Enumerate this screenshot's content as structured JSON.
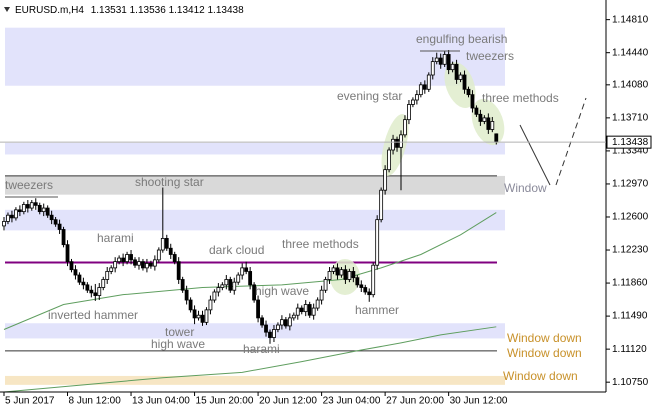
{
  "chart_data": {
    "type": "candlestick",
    "symbol": "EURUSD.m,H4",
    "categories": [
      "5 Jun 2017",
      null,
      null,
      null,
      null,
      null,
      null,
      null,
      null,
      null,
      null,
      null,
      null,
      null,
      null,
      null,
      "8 Jun 12:00",
      null,
      null,
      null,
      null,
      null,
      null,
      null,
      null,
      null,
      null,
      null,
      null,
      null,
      null,
      null,
      "13 Jun 04:00",
      null,
      null,
      null,
      null,
      null,
      null,
      null,
      null,
      null,
      null,
      null,
      null,
      null,
      null,
      null,
      "15 Jun 20:00",
      null,
      null,
      null,
      null,
      null,
      null,
      null,
      null,
      null,
      null,
      null,
      null,
      null,
      null,
      null,
      "20 Jun 12:00",
      null,
      null,
      null,
      null,
      null,
      null,
      null,
      null,
      null,
      null,
      null,
      null,
      null,
      null,
      null,
      "23 Jun 04:00",
      null,
      null,
      null,
      null,
      null,
      null,
      null,
      null,
      null,
      null,
      null,
      null,
      null,
      null,
      null,
      "27 Jun 20:00",
      null,
      null,
      null,
      null,
      null,
      null,
      null,
      null,
      null,
      null,
      null,
      null,
      null,
      null,
      null,
      "30 Jun 12:00",
      null,
      null,
      null,
      null,
      null,
      null,
      null,
      null,
      null,
      null,
      null,
      null
    ],
    "candles": [
      [
        1.125,
        1.126,
        1.1245,
        1.1255
      ],
      [
        1.1255,
        1.1265,
        1.1252,
        1.1262
      ],
      [
        1.1262,
        1.1267,
        1.1254,
        1.1259
      ],
      [
        1.1259,
        1.1271,
        1.1256,
        1.1268
      ],
      [
        1.1268,
        1.1273,
        1.1261,
        1.1266
      ],
      [
        1.1266,
        1.1277,
        1.1263,
        1.1274
      ],
      [
        1.1274,
        1.1279,
        1.1265,
        1.127
      ],
      [
        1.127,
        1.1279,
        1.1267,
        1.1276
      ],
      [
        1.1276,
        1.1281,
        1.1268,
        1.1273
      ],
      [
        1.1273,
        1.1276,
        1.1263,
        1.1266
      ],
      [
        1.1266,
        1.1275,
        1.1261,
        1.127
      ],
      [
        1.127,
        1.1273,
        1.1259,
        1.1262
      ],
      [
        1.1262,
        1.1267,
        1.1252,
        1.1257
      ],
      [
        1.1257,
        1.126,
        1.1249,
        1.1252
      ],
      [
        1.1252,
        1.1257,
        1.1241,
        1.1246
      ],
      [
        1.1246,
        1.1249,
        1.1226,
        1.1229
      ],
      [
        1.1229,
        1.1234,
        1.1205,
        1.121
      ],
      [
        1.121,
        1.1213,
        1.1198,
        1.1201
      ],
      [
        1.1201,
        1.1206,
        1.119,
        1.1195
      ],
      [
        1.1195,
        1.1198,
        1.1184,
        1.1187
      ],
      [
        1.1187,
        1.1192,
        1.1179,
        1.1184
      ],
      [
        1.1184,
        1.1187,
        1.1175,
        1.1178
      ],
      [
        1.1178,
        1.1183,
        1.117,
        1.1175
      ],
      [
        1.1175,
        1.1185,
        1.1166,
        1.1172
      ],
      [
        1.1172,
        1.1186,
        1.1167,
        1.1181
      ],
      [
        1.1181,
        1.1193,
        1.1178,
        1.119
      ],
      [
        1.119,
        1.1204,
        1.1185,
        1.1199
      ],
      [
        1.1199,
        1.1206,
        1.1196,
        1.1203
      ],
      [
        1.1203,
        1.1215,
        1.1198,
        1.121
      ],
      [
        1.121,
        1.1217,
        1.1207,
        1.1214
      ],
      [
        1.1214,
        1.1219,
        1.1205,
        1.121
      ],
      [
        1.121,
        1.1221,
        1.1207,
        1.1218
      ],
      [
        1.1218,
        1.1223,
        1.1207,
        1.1212
      ],
      [
        1.1212,
        1.1215,
        1.1203,
        1.1206
      ],
      [
        1.1206,
        1.1215,
        1.1201,
        1.121
      ],
      [
        1.121,
        1.1213,
        1.12,
        1.1203
      ],
      [
        1.1203,
        1.1213,
        1.1198,
        1.1208
      ],
      [
        1.1208,
        1.1211,
        1.1202,
        1.1205
      ],
      [
        1.1205,
        1.1217,
        1.12,
        1.1212
      ],
      [
        1.1212,
        1.1226,
        1.1209,
        1.1223
      ],
      [
        1.1223,
        1.1293,
        1.122,
        1.1236
      ],
      [
        1.1236,
        1.124,
        1.1222,
        1.1225
      ],
      [
        1.1225,
        1.123,
        1.1213,
        1.1218
      ],
      [
        1.1218,
        1.1221,
        1.1207,
        1.121
      ],
      [
        1.121,
        1.1215,
        1.1185,
        1.119
      ],
      [
        1.119,
        1.1193,
        1.1175,
        1.1178
      ],
      [
        1.1178,
        1.1183,
        1.1162,
        1.1167
      ],
      [
        1.1167,
        1.117,
        1.1153,
        1.1156
      ],
      [
        1.1156,
        1.1161,
        1.114,
        1.1147
      ],
      [
        1.1147,
        1.1155,
        1.1144,
        1.115
      ],
      [
        1.115,
        1.1155,
        1.1138,
        1.1142
      ],
      [
        1.1142,
        1.1159,
        1.1139,
        1.1156
      ],
      [
        1.1156,
        1.1172,
        1.1151,
        1.1167
      ],
      [
        1.1167,
        1.1179,
        1.1164,
        1.1176
      ],
      [
        1.1176,
        1.1186,
        1.1171,
        1.1181
      ],
      [
        1.1181,
        1.1187,
        1.1178,
        1.1184
      ],
      [
        1.1184,
        1.1195,
        1.1179,
        1.119
      ],
      [
        1.119,
        1.1193,
        1.1175,
        1.1178
      ],
      [
        1.1178,
        1.1192,
        1.1173,
        1.1187
      ],
      [
        1.1187,
        1.1198,
        1.1184,
        1.1195
      ],
      [
        1.1195,
        1.1208,
        1.119,
        1.1203
      ],
      [
        1.1203,
        1.121,
        1.1196,
        1.1199
      ],
      [
        1.1199,
        1.1204,
        1.1179,
        1.1184
      ],
      [
        1.1184,
        1.1187,
        1.1164,
        1.1167
      ],
      [
        1.1167,
        1.1172,
        1.1142,
        1.1147
      ],
      [
        1.1147,
        1.115,
        1.1136,
        1.1139
      ],
      [
        1.1139,
        1.1144,
        1.1126,
        1.1131
      ],
      [
        1.1131,
        1.1134,
        1.1118,
        1.1125
      ],
      [
        1.1125,
        1.1139,
        1.112,
        1.1134
      ],
      [
        1.1134,
        1.1142,
        1.1131,
        1.1139
      ],
      [
        1.1139,
        1.115,
        1.1134,
        1.1145
      ],
      [
        1.1145,
        1.1148,
        1.1135,
        1.1138
      ],
      [
        1.1138,
        1.1152,
        1.1133,
        1.1147
      ],
      [
        1.1147,
        1.1153,
        1.1144,
        1.115
      ],
      [
        1.115,
        1.1163,
        1.1145,
        1.1158
      ],
      [
        1.1158,
        1.1161,
        1.1151,
        1.1154
      ],
      [
        1.1154,
        1.1167,
        1.1149,
        1.1162
      ],
      [
        1.1162,
        1.1165,
        1.1147,
        1.115
      ],
      [
        1.115,
        1.1163,
        1.1145,
        1.1158
      ],
      [
        1.1158,
        1.117,
        1.1155,
        1.1167
      ],
      [
        1.1167,
        1.1183,
        1.1162,
        1.1178
      ],
      [
        1.1178,
        1.1193,
        1.1175,
        1.119
      ],
      [
        1.119,
        1.1204,
        1.1185,
        1.1199
      ],
      [
        1.1199,
        1.1206,
        1.1196,
        1.1203
      ],
      [
        1.1203,
        1.1208,
        1.119,
        1.1195
      ],
      [
        1.1195,
        1.1204,
        1.1192,
        1.1201
      ],
      [
        1.1201,
        1.1206,
        1.1185,
        1.119
      ],
      [
        1.119,
        1.1202,
        1.1187,
        1.1199
      ],
      [
        1.1199,
        1.1204,
        1.1187,
        1.1192
      ],
      [
        1.1192,
        1.1195,
        1.1181,
        1.1184
      ],
      [
        1.1184,
        1.1189,
        1.1176,
        1.1181
      ],
      [
        1.1181,
        1.1184,
        1.1173,
        1.1176
      ],
      [
        1.1176,
        1.118,
        1.1165,
        1.1173
      ],
      [
        1.1173,
        1.1209,
        1.117,
        1.1206
      ],
      [
        1.1206,
        1.1262,
        1.1201,
        1.1257
      ],
      [
        1.1257,
        1.1293,
        1.1254,
        1.129
      ],
      [
        1.129,
        1.1318,
        1.1285,
        1.1313
      ],
      [
        1.1313,
        1.1338,
        1.131,
        1.1335
      ],
      [
        1.1335,
        1.1352,
        1.133,
        1.1347
      ],
      [
        1.1347,
        1.135,
        1.1333,
        1.1338
      ],
      [
        1.1338,
        1.1357,
        1.129,
        1.1352
      ],
      [
        1.1352,
        1.1374,
        1.1349,
        1.1369
      ],
      [
        1.1369,
        1.1391,
        1.1364,
        1.1386
      ],
      [
        1.1386,
        1.1394,
        1.1383,
        1.1391
      ],
      [
        1.1391,
        1.1402,
        1.1386,
        1.1397
      ],
      [
        1.1397,
        1.1411,
        1.1394,
        1.1408
      ],
      [
        1.1408,
        1.1413,
        1.1398,
        1.1403
      ],
      [
        1.1403,
        1.1422,
        1.14,
        1.1419
      ],
      [
        1.1419,
        1.1439,
        1.1414,
        1.1434
      ],
      [
        1.1434,
        1.1444,
        1.1431,
        1.1438
      ],
      [
        1.1438,
        1.1443,
        1.1426,
        1.1431
      ],
      [
        1.1431,
        1.1446,
        1.1428,
        1.1442
      ],
      [
        1.1442,
        1.1447,
        1.142,
        1.1425
      ],
      [
        1.1425,
        1.1434,
        1.1422,
        1.1431
      ],
      [
        1.1431,
        1.1436,
        1.1409,
        1.1414
      ],
      [
        1.1414,
        1.1422,
        1.1411,
        1.1419
      ],
      [
        1.1419,
        1.1424,
        1.1398,
        1.1403
      ],
      [
        1.1403,
        1.1406,
        1.1394,
        1.1397
      ],
      [
        1.1397,
        1.1402,
        1.1377,
        1.1382
      ],
      [
        1.1382,
        1.1385,
        1.1372,
        1.1375
      ],
      [
        1.1375,
        1.138,
        1.1362,
        1.1367
      ],
      [
        1.1367,
        1.1374,
        1.1364,
        1.1371
      ],
      [
        1.1371,
        1.1376,
        1.1353,
        1.1358
      ],
      [
        1.1358,
        1.1372,
        1.1355,
        1.1367
      ],
      [
        1.13531,
        1.13536,
        1.13412,
        1.13438
      ]
    ],
    "ylim": [
      1.1064,
      1.1503
    ],
    "yticks": [
      {
        "value": 1.1481,
        "label": "1.14810"
      },
      {
        "value": 1.1444,
        "label": "1.14440"
      },
      {
        "value": 1.1408,
        "label": "1.14080"
      },
      {
        "value": 1.1371,
        "label": "1.13710"
      },
      {
        "value": 1.1334,
        "label": "1.13340"
      },
      {
        "value": 1.1297,
        "label": "1.12970"
      },
      {
        "value": 1.126,
        "label": "1.12600"
      },
      {
        "value": 1.1223,
        "label": "1.12230"
      },
      {
        "value": 1.1186,
        "label": "1.11860"
      },
      {
        "value": 1.1149,
        "label": "1.11490"
      },
      {
        "value": 1.1112,
        "label": "1.11120"
      },
      {
        "value": 1.1075,
        "label": "1.10750"
      }
    ],
    "grid": false,
    "zones": [
      {
        "low": 1.1407,
        "high": 1.1472,
        "color": "#e2e3fb"
      },
      {
        "low": 1.133,
        "high": 1.1343,
        "color": "#e2e3fb"
      },
      {
        "low": 1.1285,
        "high": 1.1306,
        "color": "#d9d9d9"
      },
      {
        "low": 1.1245,
        "high": 1.1268,
        "color": "#e2e3fb"
      },
      {
        "low": 1.1124,
        "high": 1.1141,
        "color": "#e2e3fb"
      },
      {
        "low": 1.1072,
        "high": 1.1082,
        "color": "#f7e6c4"
      }
    ],
    "levels": [
      {
        "value": 1.1306,
        "color": "#333333"
      },
      {
        "value": 1.1209,
        "color": "#800080"
      },
      {
        "value": 1.111,
        "color": "#333333"
      }
    ],
    "indicators": [
      {
        "color": "#5f9e5f",
        "points": [
          [
            0,
            1.1134
          ],
          [
            15,
            1.1162
          ],
          [
            30,
            1.1173
          ],
          [
            50,
            1.1181
          ],
          [
            70,
            1.1184
          ],
          [
            85,
            1.119
          ],
          [
            95,
            1.1203
          ],
          [
            105,
            1.1218
          ],
          [
            115,
            1.124
          ],
          [
            124,
            1.1265
          ]
        ]
      },
      {
        "color": "#5f9e5f",
        "points": [
          [
            0,
            1.1064
          ],
          [
            20,
            1.1072
          ],
          [
            40,
            1.108
          ],
          [
            60,
            1.1086
          ],
          [
            75,
            1.1098
          ],
          [
            90,
            1.1111
          ],
          [
            100,
            1.1119
          ],
          [
            110,
            1.1128
          ],
          [
            124,
            1.1137
          ]
        ]
      }
    ],
    "annotations": [
      {
        "text": "tweezers",
        "color": "#7a7a7a"
      },
      {
        "text": "shooting star",
        "color": "#7a7a7a"
      },
      {
        "text": "harami",
        "color": "#7a7a7a"
      },
      {
        "text": "dark cloud",
        "color": "#7a7a7a"
      },
      {
        "text": "three methods",
        "color": "#7a7a7a"
      },
      {
        "text": "high wave",
        "color": "#7a7a7a"
      },
      {
        "text": "inverted hammer",
        "color": "#7a7a7a"
      },
      {
        "text": "tower",
        "color": "#7a7a7a"
      },
      {
        "text": "high wave",
        "color": "#7a7a7a"
      },
      {
        "text": "harami",
        "color": "#7a7a7a"
      },
      {
        "text": "hammer",
        "color": "#7a7a7a"
      },
      {
        "text": "evening star",
        "color": "#7a7a7a"
      },
      {
        "text": "engulfing bearish",
        "color": "#7a7a7a"
      },
      {
        "text": "tweezers",
        "color": "#7a7a7a"
      },
      {
        "text": "three methods",
        "color": "#7a7a7a"
      },
      {
        "text": "Window",
        "color": "#8a8a9a"
      },
      {
        "text": "Window down",
        "color": "#c8912a"
      },
      {
        "text": "Window down",
        "color": "#c8912a"
      },
      {
        "text": "Window down",
        "color": "#c8912a"
      }
    ]
  }
}
